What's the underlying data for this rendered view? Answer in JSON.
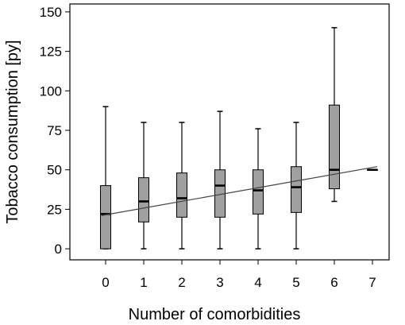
{
  "chart_data": {
    "type": "boxplot",
    "title": "",
    "xlabel": "Number of comorbidities",
    "ylabel": "Tobacco consumption  [py]",
    "categories": [
      "0",
      "1",
      "2",
      "3",
      "4",
      "5",
      "6",
      "7"
    ],
    "y_ticks": [
      "0",
      "25",
      "50",
      "75",
      "100",
      "125",
      "150"
    ],
    "ylim": [
      -7,
      155
    ],
    "grid": false,
    "boxes": [
      {
        "category": "0",
        "min": 0,
        "q1": 0,
        "median": 22,
        "q3": 40,
        "max": 90
      },
      {
        "category": "1",
        "min": 0,
        "q1": 17,
        "median": 30,
        "q3": 45,
        "max": 80
      },
      {
        "category": "2",
        "min": 0,
        "q1": 20,
        "median": 32,
        "q3": 48,
        "max": 80
      },
      {
        "category": "3",
        "min": 0,
        "q1": 20,
        "median": 40,
        "q3": 50,
        "max": 87
      },
      {
        "category": "4",
        "min": 0,
        "q1": 22,
        "median": 37,
        "q3": 50,
        "max": 76
      },
      {
        "category": "5",
        "min": 0,
        "q1": 23,
        "median": 39,
        "q3": 52,
        "max": 80
      },
      {
        "category": "6",
        "min": 30,
        "q1": 38,
        "median": 50,
        "q3": 91,
        "max": 140
      },
      {
        "category": "7",
        "min": 50,
        "q1": 50,
        "median": 50,
        "q3": 50,
        "max": 50
      }
    ],
    "trend_line": {
      "x": [
        0,
        7
      ],
      "y": [
        21.5,
        51.5
      ]
    },
    "colors": {
      "box_fill": "#a0a0a0",
      "stroke": "#000000",
      "trend": "#444444"
    }
  }
}
